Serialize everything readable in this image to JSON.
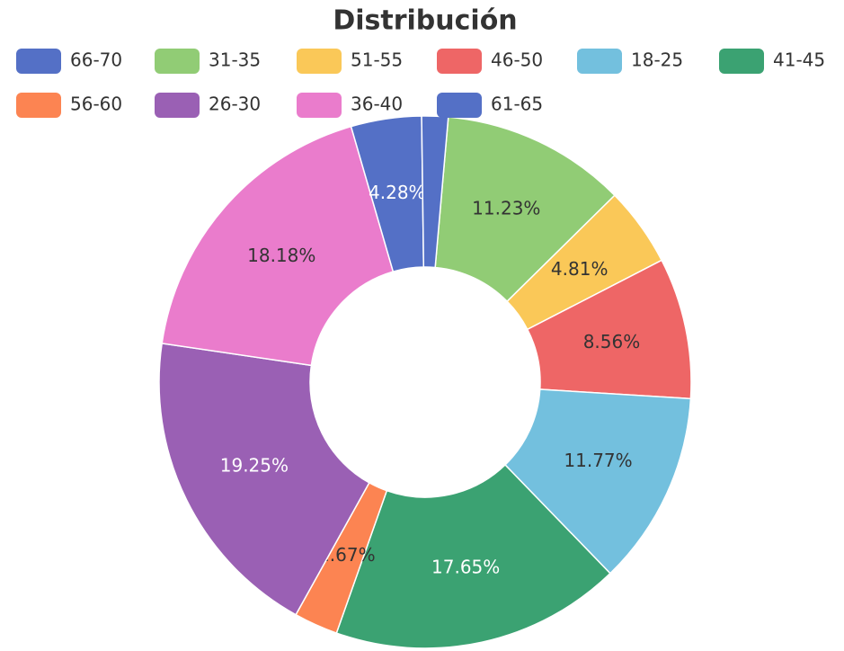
{
  "chart_data": {
    "type": "pie",
    "title": "Distribución",
    "categories": [
      "31-35",
      "51-55",
      "46-50",
      "18-25",
      "41-45",
      "56-60",
      "26-30",
      "36-40",
      "66-70",
      "61-65"
    ],
    "values": [
      11.23,
      4.81,
      8.56,
      11.77,
      17.65,
      2.67,
      19.25,
      18.18,
      4.28,
      1.6
    ],
    "value_labels": [
      "11.23%",
      "4.81%",
      "8.56%",
      "11.77%",
      "17.65%",
      "2.67%",
      "19.25%",
      "18.18%",
      "4.28%",
      null
    ],
    "colors": [
      "#91cc75",
      "#fac858",
      "#ee6666",
      "#73c0de",
      "#3ba272",
      "#fc8452",
      "#9a60b4",
      "#ea7ccc",
      "#5470c6",
      "#5470c6"
    ],
    "donut": true,
    "legend": "top"
  }
}
